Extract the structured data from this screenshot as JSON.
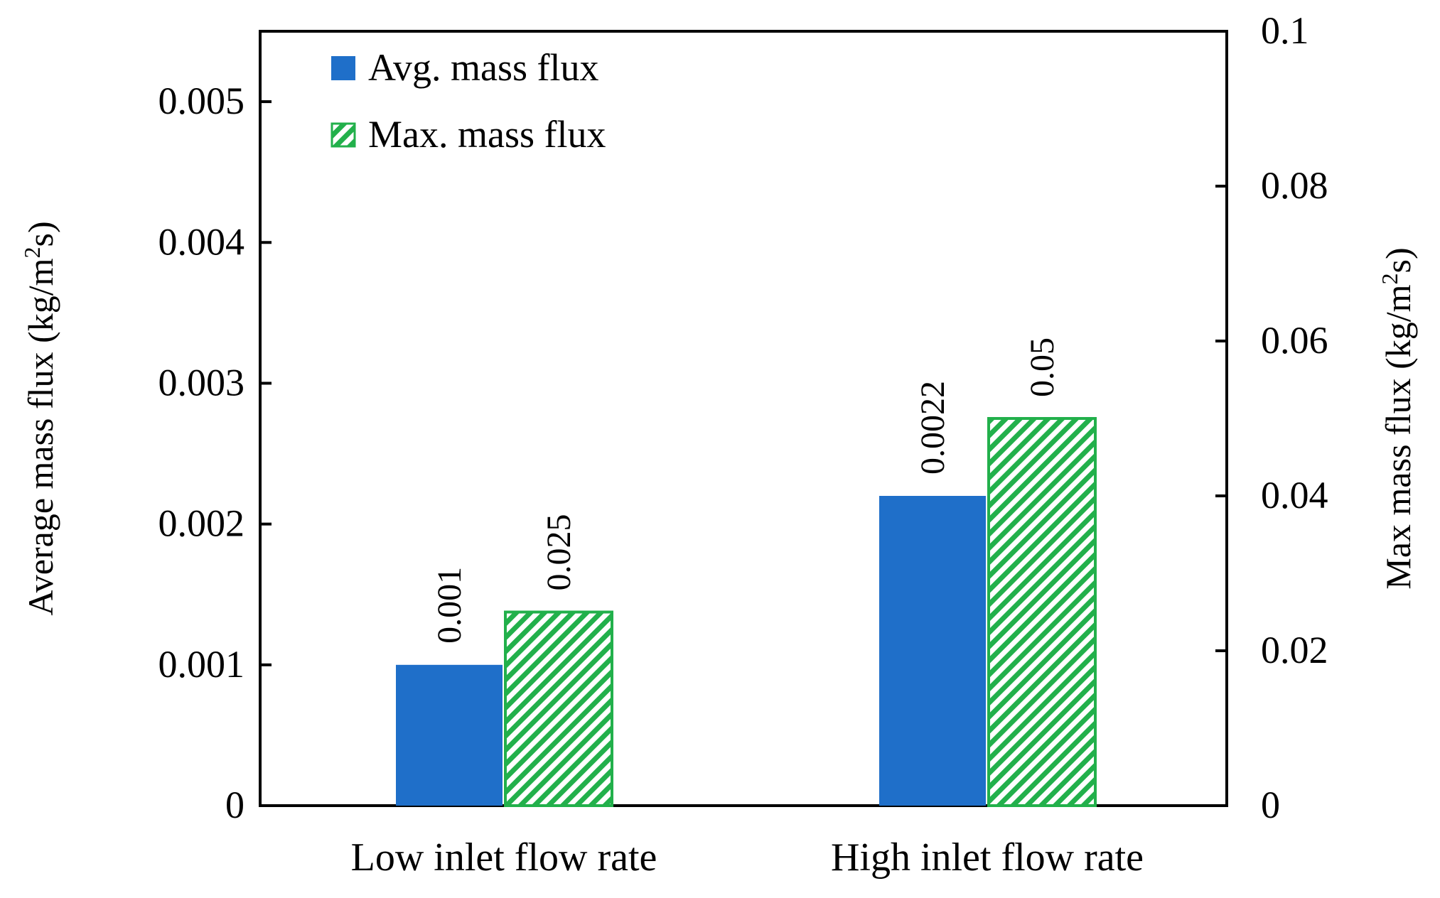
{
  "chart_data": {
    "type": "bar",
    "categories": [
      "Low inlet flow rate",
      "High inlet flow rate"
    ],
    "series": [
      {
        "name": "Avg. mass flux",
        "axis": "left",
        "values": [
          0.001,
          0.0022
        ],
        "labels": [
          "0.001",
          "0.0022"
        ],
        "color": "#1F6FC9",
        "pattern": "solid"
      },
      {
        "name": "Max. mass flux",
        "axis": "right",
        "values": [
          0.025,
          0.05
        ],
        "labels": [
          "0.025",
          "0.05"
        ],
        "color": "#22B04B",
        "pattern": "diagonal-hatch"
      }
    ],
    "left_axis": {
      "ylim": [
        0,
        0.0055
      ],
      "ticks": [
        0,
        0.001,
        0.002,
        0.003,
        0.004,
        0.005
      ],
      "tick_labels": [
        "0",
        "0.001",
        "0.002",
        "0.003",
        "0.004",
        "0.005"
      ],
      "label_main": "Average mass flux (kg/m",
      "label_sup": "2",
      "label_end": "s)"
    },
    "right_axis": {
      "ylim": [
        0,
        0.1
      ],
      "ticks": [
        0,
        0.02,
        0.04,
        0.06,
        0.08,
        0.1
      ],
      "tick_labels": [
        "0",
        "0.02",
        "0.04",
        "0.06",
        "0.08",
        "0.1"
      ],
      "label_main": "Max mass flux (kg/m",
      "label_sup": "2",
      "label_end": "s)"
    },
    "legend": {
      "placement": "top-left",
      "entries": [
        "Avg. mass flux",
        "Max. mass flux"
      ]
    },
    "grid": false,
    "title": ""
  }
}
